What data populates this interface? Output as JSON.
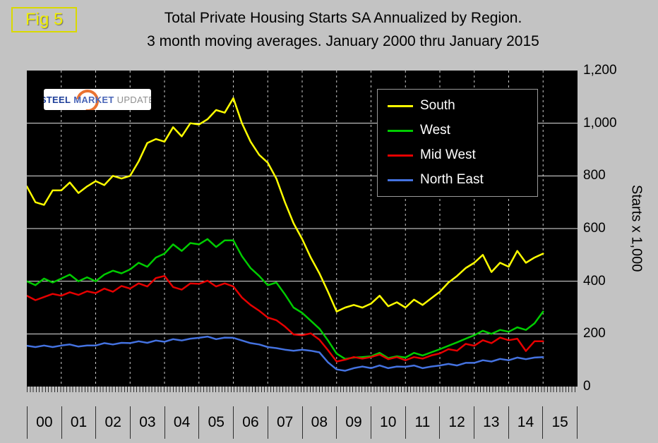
{
  "fig_label": "Fig 5",
  "title": {
    "line1": "Total Private Housing Starts SA Annualized by Region.",
    "line2": "3 month moving averages. January 2000 thru January 2015"
  },
  "logo": {
    "word1": "STEEL",
    "word2": "MARKET",
    "word3": "UPDATE"
  },
  "y_axis": {
    "title": "Starts x 1,000",
    "tick_labels": [
      "1,200",
      "1,000",
      "800",
      "600",
      "400",
      "200",
      "0"
    ]
  },
  "x_axis": {
    "labels": [
      "00",
      "01",
      "02",
      "03",
      "04",
      "05",
      "06",
      "07",
      "08",
      "09",
      "10",
      "11",
      "12",
      "13",
      "14",
      "15"
    ]
  },
  "chart_data": {
    "type": "line",
    "title": "Total Private Housing Starts SA Annualized by Region. 3 month moving averages. January 2000 thru January 2015",
    "ylabel": "Starts x 1,000",
    "ylim": [
      0,
      1200
    ],
    "y_step": 200,
    "x_min": 2000,
    "x_max": 2016,
    "x_start": 2000.0,
    "x_step": 0.25,
    "x_end": 2015.0,
    "grid": true,
    "legend_position": "top-right",
    "plot_background": "#000000",
    "series": [
      {
        "name": "South",
        "color": "#ffff00",
        "values": [
          760,
          700,
          690,
          745,
          745,
          775,
          735,
          760,
          780,
          765,
          800,
          790,
          800,
          855,
          925,
          940,
          930,
          985,
          950,
          1000,
          995,
          1015,
          1050,
          1040,
          1095,
          1000,
          930,
          880,
          850,
          790,
          700,
          620,
          560,
          490,
          430,
          360,
          285,
          300,
          310,
          300,
          315,
          345,
          305,
          320,
          300,
          330,
          310,
          335,
          360,
          395,
          420,
          450,
          470,
          500,
          435,
          470,
          455,
          515,
          470,
          490,
          505
        ]
      },
      {
        "name": "West",
        "color": "#00cc00",
        "values": [
          400,
          385,
          410,
          395,
          410,
          425,
          400,
          415,
          400,
          425,
          440,
          430,
          445,
          470,
          455,
          490,
          505,
          540,
          515,
          545,
          540,
          560,
          530,
          555,
          555,
          495,
          450,
          420,
          385,
          395,
          350,
          300,
          280,
          250,
          220,
          175,
          125,
          105,
          110,
          112,
          115,
          128,
          108,
          115,
          110,
          128,
          118,
          130,
          142,
          155,
          168,
          182,
          195,
          212,
          200,
          215,
          208,
          225,
          215,
          240,
          285
        ]
      },
      {
        "name": "Mid West",
        "color": "#e60000",
        "values": [
          345,
          328,
          340,
          352,
          345,
          358,
          348,
          362,
          355,
          372,
          360,
          382,
          372,
          392,
          380,
          412,
          420,
          378,
          368,
          392,
          390,
          402,
          380,
          392,
          380,
          338,
          310,
          288,
          262,
          252,
          228,
          198,
          195,
          202,
          178,
          138,
          95,
          102,
          112,
          106,
          112,
          122,
          104,
          112,
          100,
          112,
          106,
          118,
          126,
          142,
          136,
          162,
          155,
          176,
          165,
          186,
          176,
          182,
          135,
          172,
          172
        ]
      },
      {
        "name": "North East",
        "color": "#4472e0",
        "values": [
          155,
          150,
          156,
          150,
          156,
          160,
          152,
          156,
          156,
          165,
          160,
          166,
          165,
          172,
          166,
          175,
          170,
          180,
          175,
          182,
          185,
          190,
          180,
          186,
          185,
          175,
          165,
          160,
          150,
          146,
          140,
          136,
          140,
          136,
          130,
          92,
          65,
          60,
          70,
          76,
          70,
          80,
          70,
          76,
          75,
          80,
          70,
          76,
          80,
          86,
          80,
          90,
          90,
          100,
          95,
          105,
          100,
          110,
          104,
          110,
          112
        ]
      }
    ]
  }
}
